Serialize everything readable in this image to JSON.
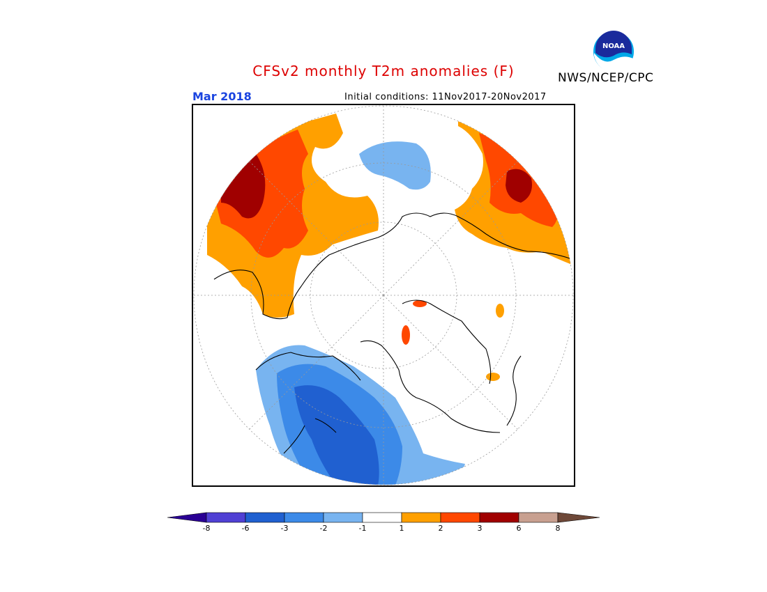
{
  "header": {
    "title": "CFSv2 monthly T2m anomalies (F)",
    "title_color": "#dd0000",
    "period": "Mar 2018",
    "period_color": "#1a44e0",
    "initial_conditions": "Initial conditions: 11Nov2017-20Nov2017",
    "agency": "NWS/NCEP/CPC",
    "logo_text": "NOAA",
    "logo_icon": "noaa-logo-icon"
  },
  "legend": {
    "labels": [
      "-8",
      "-6",
      "-3",
      "-2",
      "-1",
      "1",
      "2",
      "3",
      "6",
      "8"
    ],
    "colors": [
      "#2a0094",
      "#5040d4",
      "#2060d0",
      "#3c8ae8",
      "#78b4f0",
      "#ffffff",
      "#ffa000",
      "#ff4800",
      "#a00000",
      "#c8a090",
      "#6e4838"
    ]
  },
  "map": {
    "projection": "north-polar-stereographic",
    "colors": {
      "warm1": "#ffa000",
      "warm2": "#ff4800",
      "warm3": "#a00000",
      "cool1": "#78b4f0",
      "cool2": "#3c8ae8",
      "cool3": "#2060d0"
    }
  }
}
